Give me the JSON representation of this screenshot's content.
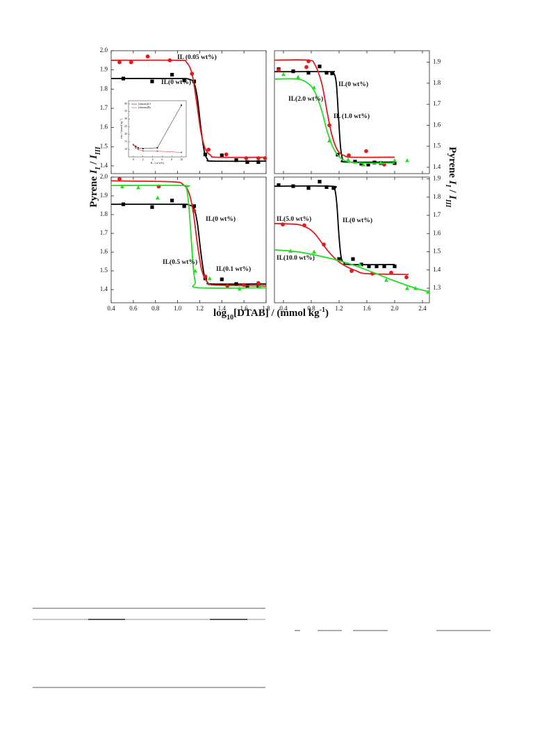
{
  "figure": {
    "x_label": [
      "log",
      "10",
      "[DTAB] / (mmol kg",
      "-1",
      ")"
    ],
    "y_label": [
      "Pyrene ",
      "I",
      "I",
      " / ",
      "I",
      "III"
    ]
  },
  "chart_data": [
    {
      "type": "scatter",
      "xlim": [
        0.4,
        1.8
      ],
      "ylim": [
        1.36,
        2.0
      ],
      "xticks": [
        {
          "value": 0.4,
          "label": "0.4"
        },
        {
          "value": 0.6,
          "label": "0.6"
        },
        {
          "value": 0.8,
          "label": "0.8"
        },
        {
          "value": 1.0,
          "label": "1.0"
        },
        {
          "value": 1.2,
          "label": "1.2"
        },
        {
          "value": 1.4,
          "label": "1.4"
        },
        {
          "value": 1.6,
          "label": "1.6"
        },
        {
          "value": 1.8,
          "label": "1.8"
        }
      ],
      "yticks": [
        {
          "value": 1.4,
          "label": "1.4"
        },
        {
          "value": 1.5,
          "label": "1.5"
        },
        {
          "value": 1.6,
          "label": "1.6"
        },
        {
          "value": 1.7,
          "label": "1.7"
        },
        {
          "value": 1.8,
          "label": "1.8"
        },
        {
          "value": 1.9,
          "label": "1.9"
        },
        {
          "value": 2.0,
          "label": "2.0"
        }
      ],
      "series": [
        {
          "name": "IL(0 wt%)",
          "color": "#000000",
          "marker": "square",
          "x": [
            0.51,
            0.77,
            0.95,
            1.06,
            1.15,
            1.25,
            1.4,
            1.53,
            1.63,
            1.73
          ],
          "values": [
            1.855,
            1.84,
            1.875,
            1.845,
            1.84,
            1.46,
            1.455,
            1.43,
            1.42,
            1.42
          ],
          "fit_x": [
            0.4,
            1.0,
            1.1,
            1.15,
            1.18,
            1.21,
            1.24,
            1.27,
            1.32,
            1.8
          ],
          "fit_values": [
            1.855,
            1.855,
            1.852,
            1.83,
            1.75,
            1.6,
            1.48,
            1.435,
            1.425,
            1.425
          ]
        },
        {
          "name": "IL (0.05 wt%)",
          "color": "#e31a1c",
          "marker": "circle",
          "x": [
            0.475,
            0.58,
            0.73,
            0.93,
            1.13,
            1.28,
            1.44,
            1.62,
            1.73,
            1.79
          ],
          "values": [
            1.94,
            1.94,
            1.97,
            1.95,
            1.88,
            1.485,
            1.46,
            1.44,
            1.44,
            1.44
          ],
          "fit_x": [
            0.4,
            1.0,
            1.08,
            1.13,
            1.17,
            1.21,
            1.25,
            1.3,
            1.36,
            1.8
          ],
          "fit_values": [
            1.95,
            1.95,
            1.94,
            1.88,
            1.74,
            1.58,
            1.49,
            1.455,
            1.445,
            1.445
          ]
        }
      ]
    },
    {
      "type": "scatter",
      "xlim": [
        0.27,
        2.5
      ],
      "ylim": [
        1.37,
        1.955
      ],
      "xticks": [
        {
          "value": 0.4,
          "label": "0.4"
        },
        {
          "value": 0.8,
          "label": "0.8"
        },
        {
          "value": 1.2,
          "label": "1.2"
        },
        {
          "value": 1.6,
          "label": "1.6"
        },
        {
          "value": 2.0,
          "label": "2.0"
        },
        {
          "value": 2.4,
          "label": "2.4"
        }
      ],
      "yticks": [
        {
          "value": 1.4,
          "label": "1.4"
        },
        {
          "value": 1.5,
          "label": "1.5"
        },
        {
          "value": 1.6,
          "label": "1.6"
        },
        {
          "value": 1.7,
          "label": "1.7"
        },
        {
          "value": 1.8,
          "label": "1.8"
        },
        {
          "value": 1.9,
          "label": "1.9"
        }
      ],
      "series": [
        {
          "name": "IL(0 wt%)",
          "color": "#000000",
          "marker": "square",
          "x": [
            0.33,
            0.54,
            0.76,
            0.92,
            1.02,
            1.1,
            1.18,
            1.43,
            1.52,
            1.62,
            1.71,
            1.8,
            2.0
          ],
          "values": [
            1.867,
            1.857,
            1.85,
            1.88,
            1.85,
            1.847,
            1.46,
            1.427,
            1.417,
            1.413,
            1.423,
            1.42,
            1.42
          ],
          "fit_x": [
            0.27,
            1.05,
            1.12,
            1.16,
            1.19,
            1.22,
            1.25,
            1.3,
            2.0
          ],
          "fit_values": [
            1.855,
            1.855,
            1.85,
            1.8,
            1.65,
            1.5,
            1.44,
            1.425,
            1.425
          ]
        },
        {
          "name": "IL (1.0 wt%)",
          "color": "#e31a1c",
          "marker": "circle",
          "x": [
            0.33,
            0.73,
            0.76,
            1.06,
            1.34,
            1.59,
            1.85
          ],
          "values": [
            1.863,
            1.877,
            1.905,
            1.6,
            1.457,
            1.477,
            1.413
          ],
          "fit_x": [
            0.27,
            0.75,
            0.85,
            0.95,
            1.03,
            1.1,
            1.18,
            1.28,
            1.4,
            2.0
          ],
          "fit_values": [
            1.91,
            1.91,
            1.89,
            1.8,
            1.66,
            1.55,
            1.48,
            1.455,
            1.448,
            1.448
          ]
        },
        {
          "name": "IL(2.0 wt%)",
          "color": "#22dd22",
          "marker": "triangle",
          "x": [
            0.4,
            0.61,
            0.84,
            1.06,
            1.33,
            1.55,
            1.8,
            2.0,
            2.18
          ],
          "values": [
            1.843,
            1.83,
            1.78,
            1.527,
            1.437,
            1.413,
            1.423,
            1.433,
            1.433
          ],
          "fit_x": [
            0.27,
            0.6,
            0.75,
            0.85,
            0.95,
            1.03,
            1.12,
            1.22,
            1.35,
            1.6,
            2.0
          ],
          "fit_values": [
            1.82,
            1.82,
            1.8,
            1.76,
            1.67,
            1.57,
            1.49,
            1.445,
            1.425,
            1.42,
            1.42
          ]
        }
      ]
    },
    {
      "type": "scatter",
      "xlim": [
        0.4,
        1.8
      ],
      "ylim": [
        1.33,
        2.0
      ],
      "xticks": [
        {
          "value": 0.4,
          "label": "0.4"
        },
        {
          "value": 0.6,
          "label": "0.6"
        },
        {
          "value": 0.8,
          "label": "0.8"
        },
        {
          "value": 1.0,
          "label": "1.0"
        },
        {
          "value": 1.2,
          "label": "1.2"
        },
        {
          "value": 1.4,
          "label": "1.4"
        },
        {
          "value": 1.6,
          "label": "1.6"
        },
        {
          "value": 1.8,
          "label": "1.8"
        }
      ],
      "yticks": [
        {
          "value": 1.4,
          "label": "1.4"
        },
        {
          "value": 1.5,
          "label": "1.5"
        },
        {
          "value": 1.6,
          "label": "1.6"
        },
        {
          "value": 1.7,
          "label": "1.7"
        },
        {
          "value": 1.8,
          "label": "1.8"
        },
        {
          "value": 1.9,
          "label": "1.9"
        },
        {
          "value": 2.0,
          "label": "2.0"
        }
      ],
      "series": [
        {
          "name": "IL(0 wt%)",
          "color": "#000000",
          "marker": "square",
          "x": [
            0.51,
            0.77,
            0.95,
            1.06,
            1.15,
            1.25,
            1.4,
            1.53,
            1.63,
            1.73
          ],
          "values": [
            1.855,
            1.84,
            1.875,
            1.845,
            1.845,
            1.46,
            1.455,
            1.43,
            1.42,
            1.42
          ],
          "fit_x": [
            0.4,
            1.0,
            1.1,
            1.15,
            1.18,
            1.21,
            1.24,
            1.27,
            1.32,
            1.8
          ],
          "fit_values": [
            1.855,
            1.855,
            1.852,
            1.83,
            1.75,
            1.6,
            1.48,
            1.44,
            1.43,
            1.43
          ]
        },
        {
          "name": "IL(0.1 wt%)",
          "color": "#e31a1c",
          "marker": "circle",
          "x": [
            0.475,
            0.83,
            1.15,
            1.25,
            1.45,
            1.6,
            1.73
          ],
          "values": [
            1.99,
            1.95,
            1.82,
            1.47,
            1.42,
            1.425,
            1.435
          ],
          "fit_x": [
            0.4,
            0.95,
            1.05,
            1.1,
            1.14,
            1.18,
            1.22,
            1.27,
            1.33,
            1.8
          ],
          "fit_values": [
            1.98,
            1.975,
            1.96,
            1.92,
            1.82,
            1.64,
            1.5,
            1.44,
            1.425,
            1.42
          ]
        },
        {
          "name": "IL(0.5 wt%)",
          "color": "#22dd22",
          "marker": "triangle",
          "x": [
            0.5,
            0.645,
            0.82,
            1.16,
            1.29,
            1.56,
            1.74
          ],
          "values": [
            1.95,
            1.945,
            1.89,
            1.5,
            1.46,
            1.405,
            1.415
          ],
          "fit_x": [
            0.4,
            1.05,
            1.08,
            1.1,
            1.12,
            1.14,
            1.16,
            1.19,
            1.8
          ],
          "fit_values": [
            1.955,
            1.955,
            1.94,
            1.86,
            1.7,
            1.53,
            1.44,
            1.41,
            1.41
          ]
        }
      ]
    },
    {
      "type": "scatter",
      "xlim": [
        0.27,
        2.5
      ],
      "ylim": [
        1.22,
        1.91
      ],
      "xticks": [
        {
          "value": 0.4,
          "label": "0.4"
        },
        {
          "value": 0.8,
          "label": "0.8"
        },
        {
          "value": 1.2,
          "label": "1.2"
        },
        {
          "value": 1.6,
          "label": "1.6"
        },
        {
          "value": 2.0,
          "label": "2.0"
        },
        {
          "value": 2.4,
          "label": "2.4"
        }
      ],
      "yticks": [
        {
          "value": 1.3,
          "label": "1.3"
        },
        {
          "value": 1.4,
          "label": "1.4"
        },
        {
          "value": 1.5,
          "label": "1.5"
        },
        {
          "value": 1.6,
          "label": "1.6"
        },
        {
          "value": 1.7,
          "label": "1.7"
        },
        {
          "value": 1.8,
          "label": "1.8"
        },
        {
          "value": 1.9,
          "label": "1.9"
        }
      ],
      "series": [
        {
          "name": "IL(0 wt%)",
          "color": "#000000",
          "marker": "square",
          "x": [
            0.33,
            0.54,
            0.76,
            0.92,
            1.02,
            1.12,
            1.2,
            1.4,
            1.52,
            1.63,
            1.74,
            1.85,
            2.0
          ],
          "values": [
            1.866,
            1.86,
            1.85,
            1.885,
            1.855,
            1.85,
            1.46,
            1.46,
            1.43,
            1.42,
            1.42,
            1.42,
            1.42
          ],
          "fit_x": [
            0.27,
            1.08,
            1.14,
            1.17,
            1.2,
            1.23,
            1.27,
            1.35,
            2.0
          ],
          "fit_values": [
            1.86,
            1.86,
            1.84,
            1.75,
            1.58,
            1.47,
            1.44,
            1.43,
            1.43
          ]
        },
        {
          "name": "IL(5.0 wt%)",
          "color": "#e31a1c",
          "marker": "circle",
          "x": [
            0.39,
            0.7,
            0.98,
            1.38,
            1.68,
            1.95,
            2.17
          ],
          "values": [
            1.65,
            1.645,
            1.54,
            1.395,
            1.38,
            1.385,
            1.36
          ],
          "fit_x": [
            0.27,
            0.6,
            0.75,
            0.85,
            0.95,
            1.05,
            1.18,
            1.3,
            1.45,
            1.6,
            2.2
          ],
          "fit_values": [
            1.655,
            1.65,
            1.63,
            1.6,
            1.55,
            1.5,
            1.45,
            1.42,
            1.395,
            1.38,
            1.375
          ]
        },
        {
          "name": "IL(10.0 wt%)",
          "color": "#22dd22",
          "marker": "triangle",
          "x": [
            0.5,
            0.84,
            1.5,
            1.88,
            2.18,
            2.3,
            2.48
          ],
          "values": [
            1.505,
            1.5,
            1.43,
            1.345,
            1.3,
            1.3,
            1.28
          ],
          "fit_x": [
            0.27,
            0.6,
            1.0,
            1.3,
            1.6,
            2.0,
            2.3,
            2.5
          ],
          "fit_values": [
            1.51,
            1.5,
            1.47,
            1.44,
            1.4,
            1.34,
            1.3,
            1.28
          ]
        }
      ]
    },
    {
      "type": "line",
      "x_label": "IL / (w/w%)",
      "y_label": [
        "cmc / (mmol kg",
        "-1",
        ")"
      ],
      "xlim": [
        -1,
        11
      ],
      "ylim": [
        5,
        42
      ],
      "xticks": [
        0,
        2,
        4,
        6,
        8,
        10
      ],
      "yticks": [
        10,
        15,
        20,
        25,
        30,
        35,
        40
      ],
      "series": [
        {
          "name": "[ohmim]Cl",
          "color": "#000000",
          "marker": "square",
          "x": [
            0,
            0.5,
            1,
            2,
            5,
            10
          ],
          "values": [
            13,
            12,
            11,
            10.5,
            11,
            39
          ]
        },
        {
          "name": "[ohmim]Br",
          "color": "#e31a1c",
          "marker": "circle",
          "x": [
            0,
            0.5,
            1,
            2,
            5,
            10
          ],
          "values": [
            13,
            11,
            10,
            9,
            8.8,
            8
          ]
        }
      ]
    }
  ]
}
